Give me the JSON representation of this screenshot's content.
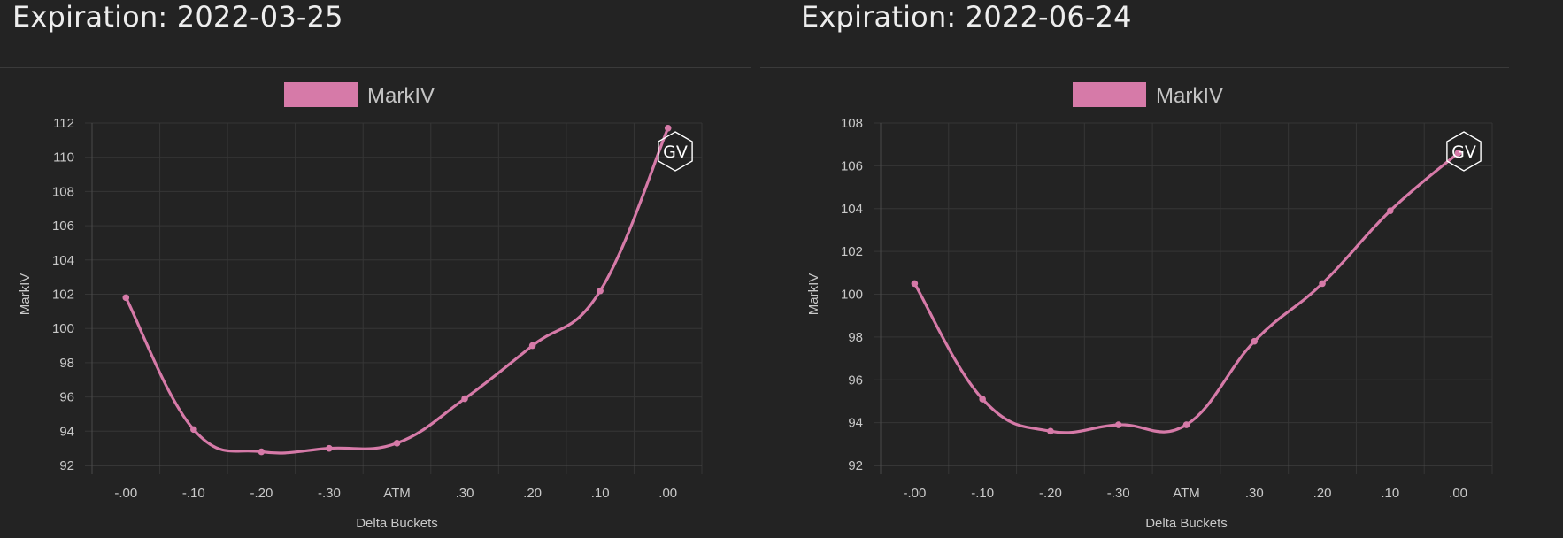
{
  "chart_data": [
    {
      "type": "line",
      "title": "Expiration: 2022-03-25",
      "xlabel": "Delta Buckets",
      "ylabel": "MarkIV",
      "legend": "top-center",
      "grid": true,
      "categories": [
        "-.00",
        "-.10",
        "-.20",
        "-.30",
        "ATM",
        ".30",
        ".20",
        ".10",
        ".00"
      ],
      "ylim": [
        92,
        112
      ],
      "yticks": [
        92,
        94,
        96,
        98,
        100,
        102,
        104,
        106,
        108,
        110,
        112
      ],
      "series": [
        {
          "name": "MarkIV",
          "color": "#d67aa8",
          "values": [
            101.8,
            94.1,
            92.8,
            93.0,
            93.3,
            95.9,
            99.0,
            102.2,
            111.7
          ]
        }
      ],
      "watermark": "GV"
    },
    {
      "type": "line",
      "title": "Expiration: 2022-06-24",
      "xlabel": "Delta Buckets",
      "ylabel": "MarkIV",
      "legend": "top-center",
      "grid": true,
      "categories": [
        "-.00",
        "-.10",
        "-.20",
        "-.30",
        "ATM",
        ".30",
        ".20",
        ".10",
        ".00"
      ],
      "ylim": [
        92,
        108
      ],
      "yticks": [
        92,
        94,
        96,
        98,
        100,
        102,
        104,
        106,
        108
      ],
      "series": [
        {
          "name": "MarkIV",
          "color": "#d67aa8",
          "values": [
            100.5,
            95.1,
            93.6,
            93.9,
            93.9,
            97.8,
            100.5,
            103.9,
            106.6
          ]
        }
      ],
      "watermark": "GV"
    }
  ]
}
